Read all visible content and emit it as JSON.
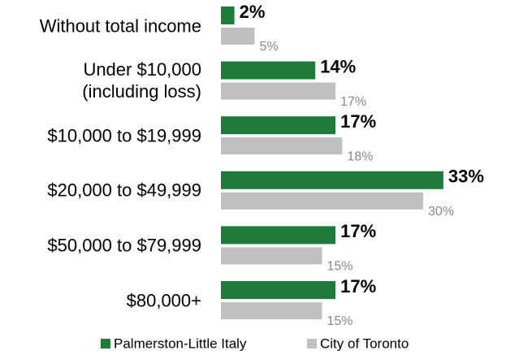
{
  "chart_data": {
    "type": "hbar",
    "categories": [
      "Without total income",
      "Under $10,000\n(including loss)",
      "$10,000 to $19,999",
      "$20,000 to $49,999",
      "$50,000 to $79,999",
      "$80,000+"
    ],
    "series": [
      {
        "name": "Palmerston-Little Italy",
        "color": "#1e7b3a",
        "values": [
          2,
          14,
          17,
          33,
          17,
          17
        ],
        "value_labels": [
          "2%",
          "14%",
          "17%",
          "33%",
          "17%",
          "17%"
        ]
      },
      {
        "name": "City of Toronto",
        "color": "#c0c0c0",
        "values": [
          5,
          17,
          18,
          30,
          15,
          15
        ],
        "value_labels": [
          "5%",
          "17%",
          "18%",
          "30%",
          "15%",
          "15%"
        ]
      }
    ],
    "legend": "bottom"
  }
}
